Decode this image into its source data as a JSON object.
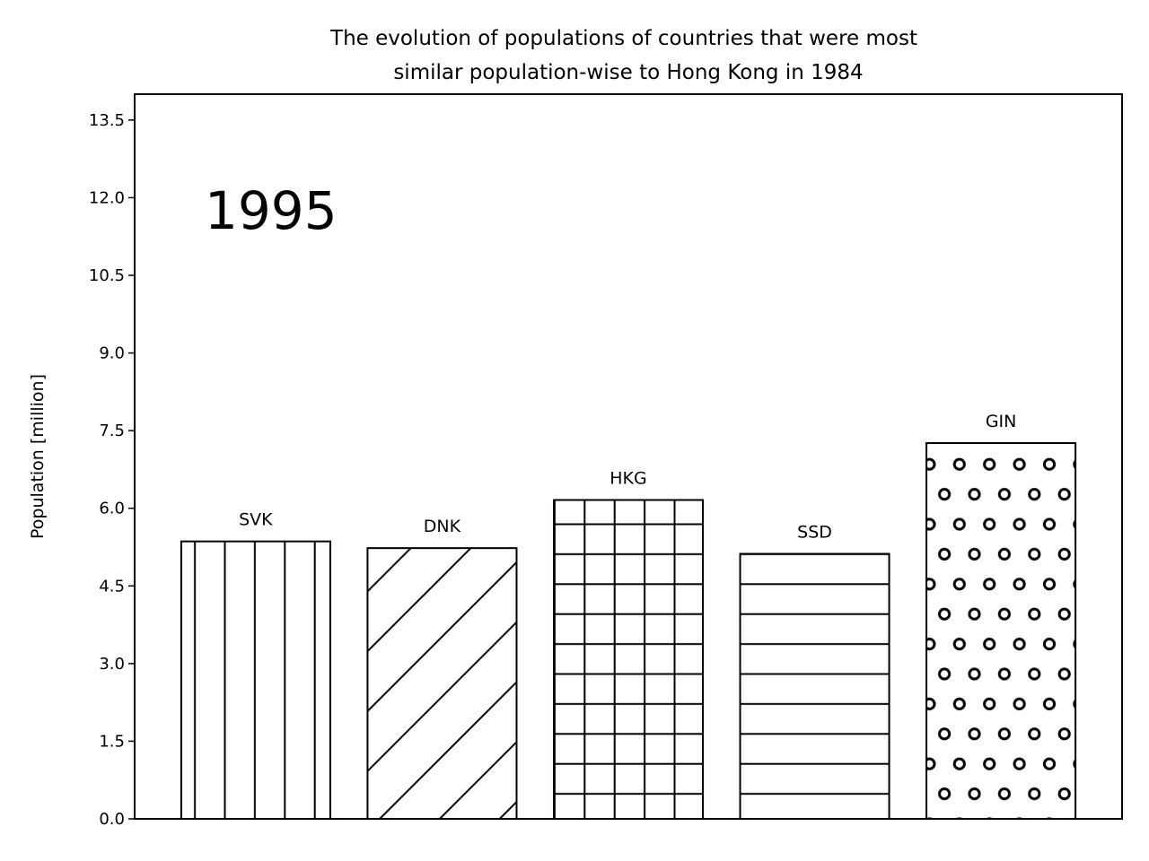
{
  "chart_data": {
    "type": "bar",
    "title": "The evolution of populations of countries that were most similar population-wise to Hong Kong in 1984",
    "title_lines": [
      "The evolution of populations of countries that were most",
      "similar population-wise to Hong Kong in 1984"
    ],
    "year_label": "1995",
    "xlabel": "",
    "ylabel": "Population [million]",
    "ylim": [
      0,
      14.0
    ],
    "yticks": [
      0.0,
      1.5,
      3.0,
      4.5,
      6.0,
      7.5,
      9.0,
      10.5,
      12.0,
      13.5
    ],
    "ytick_labels": [
      "0.0",
      "1.5",
      "3.0",
      "4.5",
      "6.0",
      "7.5",
      "9.0",
      "10.5",
      "12.0",
      "13.5"
    ],
    "grid": false,
    "categories": [
      "SVK",
      "DNK",
      "HKG",
      "SSD",
      "GIN"
    ],
    "values": [
      5.36,
      5.23,
      6.16,
      5.12,
      7.26
    ],
    "hatches": [
      "vertical",
      "diagonal",
      "grid",
      "horizontal",
      "circles"
    ],
    "colors": {
      "bar_fill": "#ffffff",
      "bar_edge": "#000000",
      "text": "#000000"
    }
  }
}
